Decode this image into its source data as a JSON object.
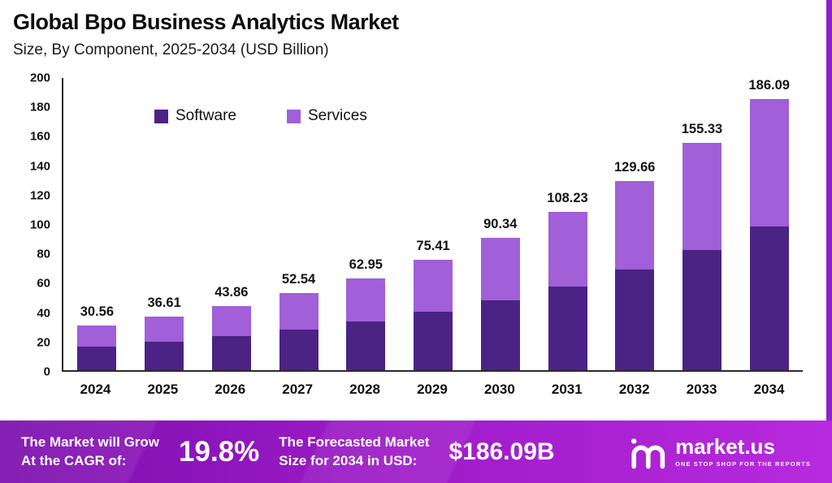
{
  "header": {
    "title": "Global Bpo Business Analytics Market",
    "subtitle": "Size, By Component, 2025-2034 (USD Billion)"
  },
  "chart_data": {
    "type": "bar",
    "stacked": true,
    "title": "Global Bpo Business Analytics Market Size, By Component, 2025-2034 (USD Billion)",
    "categories": [
      "2024",
      "2025",
      "2026",
      "2027",
      "2028",
      "2029",
      "2030",
      "2031",
      "2032",
      "2033",
      "2034"
    ],
    "series": [
      {
        "name": "Software",
        "color": "#4a2385",
        "values": [
          16.2,
          19.4,
          23.25,
          27.85,
          33.36,
          39.97,
          47.88,
          57.36,
          68.72,
          82.32,
          98.63
        ]
      },
      {
        "name": "Services",
        "color": "#a15fd8",
        "values": [
          14.36,
          17.21,
          20.61,
          24.69,
          29.59,
          35.44,
          42.46,
          50.87,
          60.94,
          73.01,
          87.46
        ]
      }
    ],
    "totals": [
      30.56,
      36.61,
      43.86,
      52.54,
      62.95,
      75.41,
      90.34,
      108.23,
      129.66,
      155.33,
      186.09
    ],
    "xlabel": "",
    "ylabel": "",
    "ylim": [
      0,
      200
    ],
    "yticks": [
      0,
      20,
      40,
      60,
      80,
      100,
      120,
      140,
      160,
      180,
      200
    ],
    "grid": false,
    "legend_position": "inside-top-left"
  },
  "legend": {
    "items": [
      {
        "label": "Software",
        "color": "#4a2385"
      },
      {
        "label": "Services",
        "color": "#a15fd8"
      }
    ]
  },
  "banner": {
    "cagr_label_line1": "The Market will Grow",
    "cagr_label_line2": "At the CAGR of:",
    "cagr_value": "19.8%",
    "forecast_label_line1": "The Forecasted Market",
    "forecast_label_line2": "Size for 2034 in USD:",
    "forecast_value": "$186.09B",
    "brand": "market.us",
    "brand_tagline": "ONE STOP SHOP FOR THE REPORTS"
  },
  "colors": {
    "software": "#4a2385",
    "services": "#a15fd8",
    "banner_gradient_start": "#7c0fae",
    "banner_gradient_end": "#b82ade",
    "right_strip": "#8b22cc",
    "axis": "#2b2b2b"
  }
}
